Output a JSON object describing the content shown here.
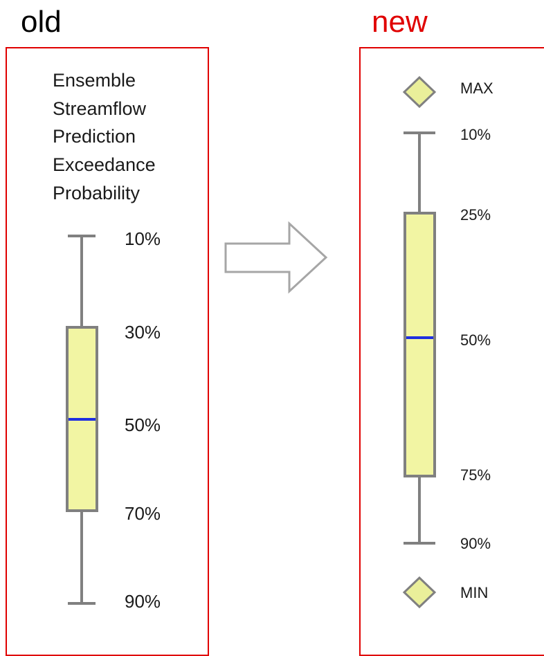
{
  "old": {
    "heading": "old",
    "description_lines": [
      "Ensemble",
      "Streamflow",
      "Prediction",
      "Exceedance",
      "Probability"
    ],
    "labels": {
      "whisker_top": "10%",
      "box_top": "30%",
      "median": "50%",
      "box_bottom": "70%",
      "whisker_bottom": "90%"
    }
  },
  "new": {
    "heading": "new",
    "labels": {
      "max": "MAX",
      "whisker_top": "10%",
      "box_top": "25%",
      "median": "50%",
      "box_bottom": "75%",
      "whisker_bottom": "90%",
      "min": "MIN"
    }
  },
  "colors": {
    "panel_border": "#e00000",
    "new_heading": "#e00000",
    "box_fill": "#f2f5a3",
    "box_stroke": "#808080",
    "median_line": "#1f2fe0",
    "marker_fill": "#eaef9a",
    "arrow_stroke": "#a6a6a6"
  },
  "icons": {
    "arrow": "right-arrow-outline",
    "marker": "diamond-marker"
  }
}
